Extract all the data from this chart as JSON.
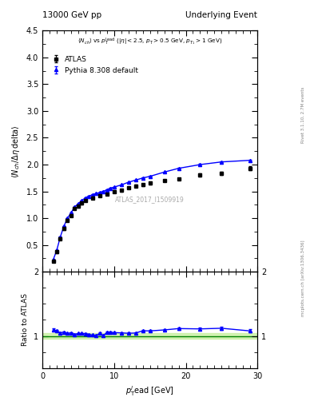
{
  "title_left": "13000 GeV pp",
  "title_right": "Underlying Event",
  "annotation": "ATLAS_2017_I1509919",
  "ylabel_main": "\\langle N_{ch}/ \\Delta \\eta delta\\rangle",
  "ylabel_ratio": "Ratio to ATLAS",
  "right_label_top": "Rivet 3.1.10, 2.7M events",
  "right_label_bottom": "mcplots.cern.ch [arXiv:1306.3436]",
  "subtitle": "\\langle N_{ch}\\rangle vs p_T^{lead} (|\\eta| < 2.5, p_T > 0.5 GeV, p_{T_1} > 1 GeV)",
  "atlas_label": "ATLAS",
  "pythia_label": "Pythia 8.308 default",
  "atlas_x": [
    1.5,
    2.0,
    2.5,
    3.0,
    3.5,
    4.0,
    4.5,
    5.0,
    5.5,
    6.0,
    7.0,
    8.0,
    9.0,
    10.0,
    11.0,
    12.0,
    13.0,
    14.0,
    15.0,
    17.0,
    19.0,
    22.0,
    25.0,
    29.0
  ],
  "atlas_y": [
    0.2,
    0.37,
    0.62,
    0.8,
    0.96,
    1.05,
    1.18,
    1.22,
    1.28,
    1.33,
    1.38,
    1.42,
    1.45,
    1.5,
    1.52,
    1.57,
    1.6,
    1.62,
    1.65,
    1.7,
    1.73,
    1.8,
    1.83,
    1.93
  ],
  "atlas_yerr": [
    0.02,
    0.02,
    0.02,
    0.02,
    0.02,
    0.02,
    0.02,
    0.02,
    0.02,
    0.02,
    0.02,
    0.02,
    0.02,
    0.02,
    0.02,
    0.02,
    0.02,
    0.02,
    0.02,
    0.02,
    0.02,
    0.03,
    0.03,
    0.04
  ],
  "pythia_x": [
    1.5,
    2.0,
    2.5,
    3.0,
    3.5,
    4.0,
    4.5,
    5.0,
    5.5,
    6.0,
    6.5,
    7.0,
    7.5,
    8.0,
    8.5,
    9.0,
    9.5,
    10.0,
    11.0,
    12.0,
    13.0,
    14.0,
    15.0,
    17.0,
    19.0,
    22.0,
    25.0,
    29.0
  ],
  "pythia_y": [
    0.22,
    0.4,
    0.65,
    0.85,
    1.0,
    1.1,
    1.21,
    1.27,
    1.33,
    1.38,
    1.41,
    1.44,
    1.46,
    1.48,
    1.5,
    1.53,
    1.56,
    1.58,
    1.62,
    1.67,
    1.71,
    1.75,
    1.78,
    1.86,
    1.93,
    2.0,
    2.05,
    2.08
  ],
  "pythia_yerr": [
    0.005,
    0.005,
    0.005,
    0.005,
    0.005,
    0.005,
    0.005,
    0.005,
    0.005,
    0.005,
    0.005,
    0.005,
    0.005,
    0.005,
    0.005,
    0.005,
    0.005,
    0.005,
    0.005,
    0.005,
    0.005,
    0.005,
    0.005,
    0.007,
    0.01,
    0.01,
    0.01,
    0.015
  ],
  "ratio_x": [
    1.5,
    2.0,
    2.5,
    3.0,
    3.5,
    4.0,
    4.5,
    5.0,
    5.5,
    6.0,
    6.5,
    7.0,
    7.5,
    8.0,
    8.5,
    9.0,
    9.5,
    10.0,
    11.0,
    12.0,
    13.0,
    14.0,
    15.0,
    17.0,
    19.0,
    22.0,
    25.0,
    29.0
  ],
  "ratio_y": [
    1.1,
    1.08,
    1.05,
    1.06,
    1.04,
    1.05,
    1.025,
    1.04,
    1.04,
    1.037,
    1.022,
    1.014,
    1.007,
    1.042,
    1.007,
    1.055,
    1.056,
    1.053,
    1.048,
    1.042,
    1.046,
    1.08,
    1.079,
    1.094,
    1.115,
    1.11,
    1.12,
    1.078
  ],
  "ratio_yerr": [
    0.02,
    0.015,
    0.012,
    0.01,
    0.01,
    0.01,
    0.01,
    0.01,
    0.01,
    0.01,
    0.01,
    0.01,
    0.01,
    0.01,
    0.01,
    0.01,
    0.01,
    0.01,
    0.01,
    0.01,
    0.01,
    0.015,
    0.015,
    0.015,
    0.02,
    0.02,
    0.02,
    0.025
  ],
  "xlim": [
    0,
    30
  ],
  "ylim_main": [
    0,
    4.5
  ],
  "ylim_ratio": [
    0.5,
    2.0
  ],
  "yticks_main": [
    0.5,
    1.0,
    1.5,
    2.0,
    2.5,
    3.0,
    3.5,
    4.0,
    4.5
  ],
  "yticks_ratio": [
    1.0,
    2.0
  ],
  "atlas_color": "black",
  "pythia_color": "blue",
  "band_color": "#c8f0a0",
  "band_alpha": 0.8,
  "line_color": "green"
}
